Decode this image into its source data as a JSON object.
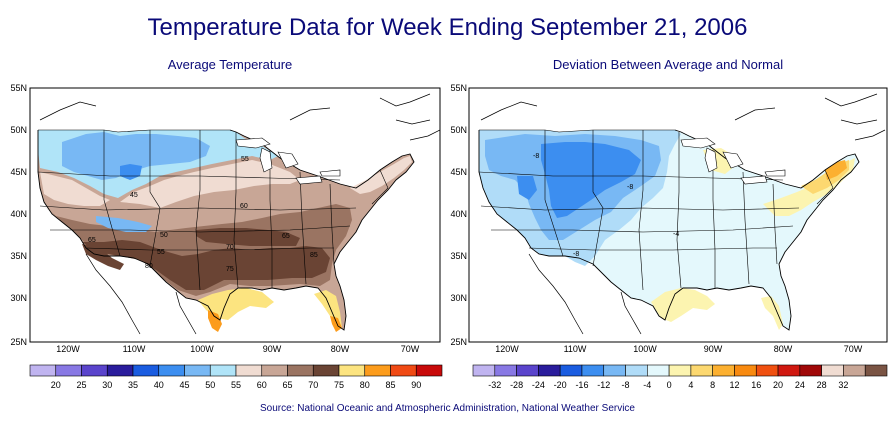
{
  "page": {
    "title": "Temperature Data for Week Ending September 21, 2006",
    "source": "Source:  National Oceanic and Atmospheric Administration, National Weather Service"
  },
  "maps": [
    {
      "id": "average",
      "subtitle": "Average Temperature",
      "lat_ticks": [
        "55N",
        "50N",
        "45N",
        "40N",
        "35N",
        "30N",
        "25N"
      ],
      "lon_ticks": [
        "120W",
        "110W",
        "100W",
        "90W",
        "80W",
        "70W"
      ],
      "contour_labels": [
        "55",
        "45",
        "60",
        "65",
        "50",
        "55",
        "70",
        "85",
        "75",
        "65",
        "80"
      ],
      "legend": {
        "labels": [
          "20",
          "25",
          "30",
          "35",
          "40",
          "45",
          "50",
          "55",
          "60",
          "65",
          "70",
          "75",
          "80",
          "85",
          "90"
        ],
        "colors": [
          "#c0b4f0",
          "#8878e4",
          "#5a44cc",
          "#2a1c9c",
          "#1a5ce0",
          "#3c8ef0",
          "#78b8f4",
          "#b0e4f8",
          "#f0dcd2",
          "#c8a696",
          "#9a7462",
          "#6a4434",
          "#fce480",
          "#fc9c1c",
          "#f04a14",
          "#c80a0a"
        ]
      }
    },
    {
      "id": "deviation",
      "subtitle": "Deviation Between Average and Normal",
      "lat_ticks": [
        "55N",
        "50N",
        "45N",
        "40N",
        "35N",
        "30N",
        "25N"
      ],
      "lon_ticks": [
        "120W",
        "110W",
        "100W",
        "90W",
        "80W",
        "70W"
      ],
      "contour_labels": [
        "-8",
        "-8",
        "-4",
        "-8"
      ],
      "legend": {
        "labels": [
          "-32",
          "-28",
          "-24",
          "-20",
          "-16",
          "-12",
          "-8",
          "-4",
          "0",
          "4",
          "8",
          "12",
          "16",
          "20",
          "24",
          "28",
          "32"
        ],
        "colors": [
          "#c0b4f0",
          "#8878e4",
          "#5a44cc",
          "#2a1c9c",
          "#1a5ce0",
          "#3c8ef0",
          "#78b8f4",
          "#b0dcf8",
          "#e4f8fc",
          "#fcf4b0",
          "#fcd870",
          "#fcb030",
          "#f88a10",
          "#f05010",
          "#d01810",
          "#a00808",
          "#f0dcd2",
          "#c8a696",
          "#7a5444"
        ]
      }
    }
  ]
}
